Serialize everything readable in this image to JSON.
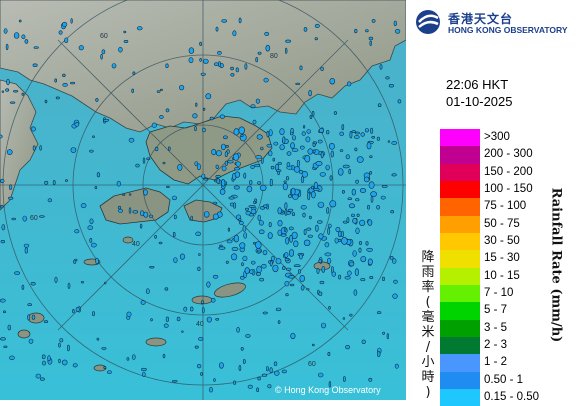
{
  "map": {
    "credit": "© Hong Kong Observatory",
    "range_ring_labels": [
      "60",
      "80",
      "40",
      "40",
      "60",
      "60"
    ],
    "colors": {
      "sea": "#42b7d6",
      "land": "#9aa090",
      "echo": "#21a6ee",
      "echo_outline": "#103040"
    }
  },
  "header": {
    "logo_cn": "香港天文台",
    "logo_en": "HONG KONG OBSERVATORY",
    "time": "22:06 HKT",
    "date": "01-10-2025"
  },
  "legend": {
    "axis_title_en": "Rainfall Rate (mm/h)",
    "axis_title_cn": "降雨率(毫米/小時)",
    "items": [
      {
        "label": ">300",
        "color": "#ff00ff"
      },
      {
        "label": "200 - 300",
        "color": "#c00090"
      },
      {
        "label": "150 - 200",
        "color": "#e0005a"
      },
      {
        "label": "100 - 150",
        "color": "#ff0000"
      },
      {
        "label": "75 - 100",
        "color": "#ff6400"
      },
      {
        "label": "50 - 75",
        "color": "#ffa000"
      },
      {
        "label": "30 - 50",
        "color": "#ffc800"
      },
      {
        "label": "15 - 30",
        "color": "#f0e000"
      },
      {
        "label": "10 - 15",
        "color": "#b4f000"
      },
      {
        "label": "7 - 10",
        "color": "#64f000"
      },
      {
        "label": "5 - 7",
        "color": "#00d400"
      },
      {
        "label": "3 - 5",
        "color": "#00a000"
      },
      {
        "label": "2 - 3",
        "color": "#007a30"
      },
      {
        "label": "1 - 2",
        "color": "#4a96ff"
      },
      {
        "label": "0.50 - 1",
        "color": "#1e8cf0"
      },
      {
        "label": "0.15 - 0.50",
        "color": "#1ec8ff"
      }
    ]
  }
}
